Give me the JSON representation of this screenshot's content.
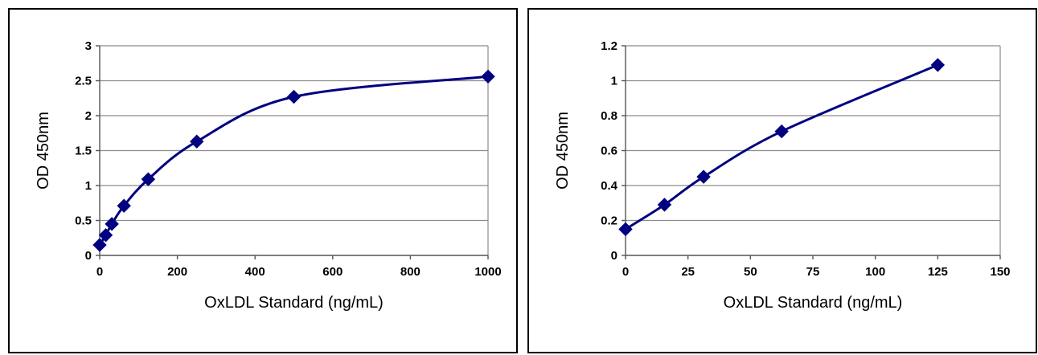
{
  "chart_data": [
    {
      "type": "line",
      "title": "",
      "xlabel": "OxLDL Standard (ng/mL)",
      "ylabel": "OD 450nm",
      "xlim": [
        0,
        1000
      ],
      "ylim": [
        0,
        3
      ],
      "xticks": [
        0,
        200,
        400,
        600,
        800,
        1000
      ],
      "yticks": [
        0,
        0.5,
        1,
        1.5,
        2,
        2.5,
        3
      ],
      "grid": "horizontal",
      "legend": "none",
      "series": [
        {
          "x": [
            0,
            15.6,
            31.25,
            62.5,
            125,
            250,
            500,
            1000
          ],
          "y": [
            0.15,
            0.29,
            0.45,
            0.71,
            1.09,
            1.63,
            2.27,
            2.56
          ],
          "color": "#000080",
          "marker": "diamond",
          "smooth": true
        }
      ]
    },
    {
      "type": "line",
      "title": "",
      "xlabel": "OxLDL Standard (ng/mL)",
      "ylabel": "OD 450nm",
      "xlim": [
        0,
        150
      ],
      "ylim": [
        0,
        1.2
      ],
      "xticks": [
        0,
        25,
        50,
        75,
        100,
        125,
        150
      ],
      "yticks": [
        0,
        0.2,
        0.4,
        0.6,
        0.8,
        1,
        1.2
      ],
      "grid": "horizontal",
      "legend": "none",
      "series": [
        {
          "x": [
            0,
            15.6,
            31.25,
            62.5,
            125
          ],
          "y": [
            0.15,
            0.29,
            0.45,
            0.71,
            1.09
          ],
          "color": "#000080",
          "marker": "diamond",
          "smooth": true
        }
      ]
    }
  ]
}
